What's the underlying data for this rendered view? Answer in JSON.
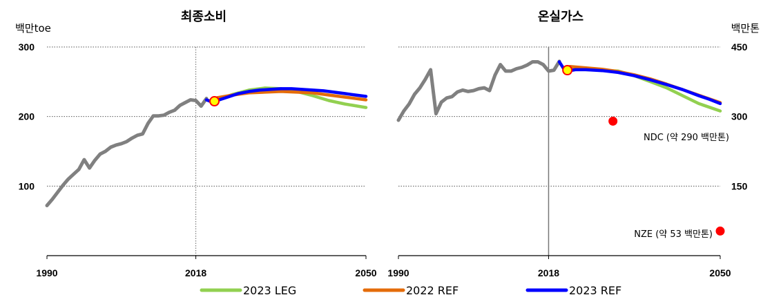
{
  "chart_data": [
    {
      "type": "line",
      "title": "최종소비",
      "ylabel": "백만toe",
      "xlim": [
        1990,
        2050
      ],
      "ylim": [
        0,
        300
      ],
      "x_ticks": [
        1990,
        2018,
        2050
      ],
      "y_ticks": [
        100,
        200,
        300
      ],
      "grid": "horizontal dotted",
      "reference_line_x": 2018,
      "series": [
        {
          "name": "",
          "color": "#808080",
          "x": [
            1990,
            1991,
            1992,
            1993,
            1994,
            1995,
            1996,
            1997,
            1998,
            1999,
            2000,
            2001,
            2002,
            2003,
            2004,
            2005,
            2006,
            2007,
            2008,
            2009,
            2010,
            2011,
            2012,
            2013,
            2014,
            2015,
            2016,
            2017,
            2018,
            2019,
            2020
          ],
          "y": [
            72,
            81,
            91,
            101,
            110,
            117,
            124,
            138,
            126,
            137,
            146,
            150,
            156,
            159,
            161,
            164,
            169,
            173,
            175,
            190,
            201,
            201,
            202,
            206,
            209,
            216,
            220,
            224,
            223,
            215,
            226
          ]
        },
        {
          "name": "2023 LEG",
          "color": "#92d050",
          "x": [
            2022,
            2025,
            2028,
            2031,
            2034,
            2037,
            2040,
            2043,
            2046,
            2050
          ],
          "y": [
            224,
            232,
            238,
            241,
            240,
            236,
            230,
            223,
            218,
            213
          ]
        },
        {
          "name": "2022 REF",
          "color": "#e46c0a",
          "x": [
            2022,
            2025,
            2028,
            2031,
            2034,
            2037,
            2040,
            2043,
            2046,
            2050
          ],
          "y": [
            227,
            231,
            234,
            235,
            236,
            235,
            234,
            231,
            228,
            224
          ]
        },
        {
          "name": "2023 REF",
          "color": "#0000ff",
          "x": [
            2020,
            2021,
            2022,
            2024,
            2026,
            2028,
            2030,
            2032,
            2034,
            2036,
            2038,
            2040,
            2042,
            2044,
            2046,
            2048,
            2050
          ],
          "y": [
            224,
            221,
            223,
            228,
            233,
            236,
            238,
            239,
            240,
            240,
            239,
            238,
            237,
            235,
            233,
            231,
            229
          ]
        }
      ],
      "marker": {
        "x": 2021.5,
        "y": 222,
        "fill": "#ffff00",
        "stroke": "#ff0000"
      }
    },
    {
      "type": "line",
      "title": "온실가스",
      "ylabel": "백만톤",
      "xlim": [
        1990,
        2050
      ],
      "ylim": [
        0,
        450
      ],
      "x_ticks": [
        1990,
        2018,
        2050
      ],
      "y_ticks": [
        150,
        300,
        450
      ],
      "grid": "horizontal dotted",
      "reference_line_x": 2018,
      "series": [
        {
          "name": "",
          "color": "#808080",
          "x": [
            1990,
            1991,
            1992,
            1993,
            1994,
            1995,
            1996,
            1997,
            1998,
            1999,
            2000,
            2001,
            2002,
            2003,
            2004,
            2005,
            2006,
            2007,
            2008,
            2009,
            2010,
            2011,
            2012,
            2013,
            2014,
            2015,
            2016,
            2017,
            2018,
            2019,
            2020
          ],
          "y": [
            292,
            312,
            327,
            348,
            362,
            380,
            401,
            306,
            331,
            340,
            343,
            353,
            357,
            354,
            356,
            360,
            362,
            356,
            389,
            412,
            398,
            398,
            403,
            406,
            411,
            418,
            418,
            412,
            398,
            400,
            419
          ],
          "y_units_note": ""
        },
        {
          "name": "2023 LEG",
          "color": "#92d050",
          "x": [
            2022,
            2025,
            2028,
            2031,
            2034,
            2037,
            2040,
            2043,
            2046,
            2050
          ],
          "y": [
            405,
            401,
            400,
            398,
            388,
            375,
            362,
            345,
            328,
            312
          ]
        },
        {
          "name": "2022 REF",
          "color": "#e46c0a",
          "x": [
            2022,
            2025,
            2028,
            2031,
            2034,
            2037,
            2040,
            2043,
            2046,
            2050
          ],
          "y": [
            408,
            405,
            402,
            397,
            390,
            381,
            370,
            358,
            346,
            330
          ]
        },
        {
          "name": "2023 REF",
          "color": "#0000ff",
          "x": [
            2020,
            2021,
            2022,
            2023,
            2025,
            2028,
            2031,
            2034,
            2037,
            2040,
            2043,
            2046,
            2048,
            2050
          ],
          "y": [
            418,
            400,
            399,
            401,
            401,
            399,
            395,
            388,
            379,
            369,
            358,
            345,
            337,
            328
          ]
        }
      ],
      "points": [
        {
          "label": "NDC (약 290 백만톤)",
          "x": 2030,
          "y": 290,
          "color": "#ff0000"
        },
        {
          "label": "NZE (약 53 백만톤)",
          "x": 2050,
          "y": 53,
          "color": "#ff0000"
        }
      ],
      "marker": {
        "x": 2021.5,
        "y": 400,
        "fill": "#ffff00",
        "stroke": "#ff0000"
      }
    }
  ],
  "legend": [
    {
      "label": "2023 LEG",
      "color": "#92d050"
    },
    {
      "label": "2022 REF",
      "color": "#e46c0a"
    },
    {
      "label": "2023 REF",
      "color": "#0000ff"
    }
  ]
}
